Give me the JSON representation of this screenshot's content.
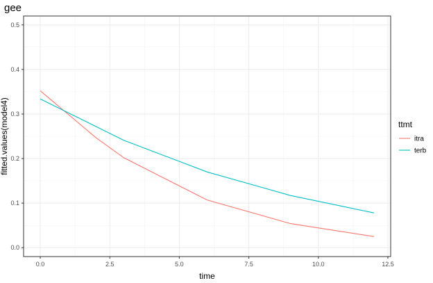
{
  "chart_data": {
    "type": "line",
    "title": "gee",
    "xlabel": "time",
    "ylabel": "fitted.values(model4)",
    "xlim": [
      -0.6,
      12.6
    ],
    "ylim": [
      -0.02,
      0.52
    ],
    "x_ticks": [
      0,
      2.5,
      5,
      7.5,
      10,
      12.5
    ],
    "x_tick_labels": [
      "0.0",
      "2.5",
      "5.0",
      "7.5",
      "10.0",
      "12.5"
    ],
    "y_ticks": [
      0,
      0.1,
      0.2,
      0.3,
      0.4,
      0.5
    ],
    "y_tick_labels": [
      "0.0",
      "0.1",
      "0.2",
      "0.3",
      "0.4",
      "0.5"
    ],
    "grid": true,
    "legend": {
      "title": "ttmt",
      "position": "right"
    },
    "series": [
      {
        "name": "itra",
        "color": "#F8766D",
        "x": [
          0,
          2,
          3,
          6,
          9,
          12
        ],
        "y": [
          0.352,
          0.247,
          0.202,
          0.107,
          0.054,
          0.025
        ]
      },
      {
        "name": "terb",
        "color": "#00BFC4",
        "x": [
          0,
          3,
          6,
          9,
          12
        ],
        "y": [
          0.334,
          0.241,
          0.17,
          0.117,
          0.078
        ]
      }
    ]
  }
}
